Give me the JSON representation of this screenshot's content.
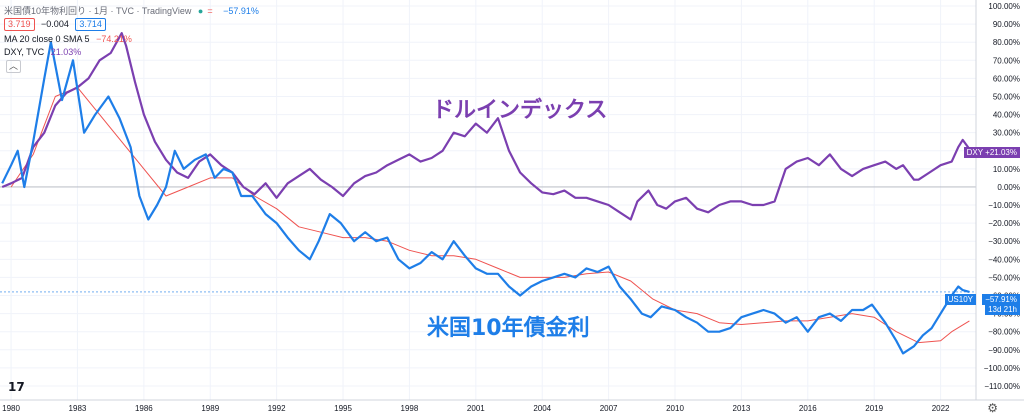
{
  "header": {
    "title": "米国債10年物利回り · 1月 · TVC · TradingView",
    "dot_colors": [
      "#26a69a",
      "#ef5350"
    ],
    "change_pct": "−57.91%",
    "bid": "3.719",
    "change": "−0.004",
    "ask": "3.714",
    "ma_label": "MA 20 close 0 SMA 5",
    "ma_value": "−74.21%",
    "dxy_label": "DXY, TVC",
    "dxy_value": "21.03%",
    "collapse_icon": "chevron-up-icon"
  },
  "annotations": {
    "dxy": "ドルインデックス",
    "us10y": "米国10年債金利"
  },
  "right_tags": {
    "dxy": "DXY  +21.03%",
    "us10y_name": "US10Y",
    "us10y_value": "−57.91%",
    "countdown": "13d 21h"
  },
  "colors": {
    "dxy": "#7b3fb0",
    "us10y": "#1e7ee8",
    "ma": "#ef5350",
    "grid": "#f0f3fa",
    "axis_text": "#131722"
  },
  "chart_data": {
    "type": "line",
    "x_ticks": [
      "1980",
      "1983",
      "1986",
      "1989",
      "1992",
      "1995",
      "1998",
      "2001",
      "2004",
      "2007",
      "2010",
      "2013",
      "2016",
      "2019",
      "2022"
    ],
    "y_ticks": [
      "100.00%",
      "90.00%",
      "80.00%",
      "70.00%",
      "60.00%",
      "50.00%",
      "40.00%",
      "30.00%",
      "20.00%",
      "10.00%",
      "0.00%",
      "−10.00%",
      "−20.00%",
      "−30.00%",
      "−40.00%",
      "−50.00%",
      "−60.00%",
      "−70.00%",
      "−80.00%",
      "−90.00%",
      "−100.00%",
      "−110.00%"
    ],
    "ylim": [
      -110,
      100
    ],
    "xlim": [
      1979.5,
      2023.6
    ],
    "series": [
      {
        "name": "DXY",
        "color": "#7b3fb0",
        "x": [
          1979.6,
          1980.0,
          1980.5,
          1981.0,
          1981.5,
          1982.0,
          1982.5,
          1983.0,
          1983.5,
          1984.0,
          1984.5,
          1985.0,
          1985.2,
          1985.6,
          1986.0,
          1986.5,
          1987.0,
          1987.5,
          1988.0,
          1988.5,
          1989.0,
          1989.5,
          1990.0,
          1990.5,
          1991.0,
          1991.5,
          1992.0,
          1992.5,
          1993.0,
          1993.5,
          1994.0,
          1994.5,
          1995.0,
          1995.5,
          1996.0,
          1996.5,
          1997.0,
          1997.5,
          1998.0,
          1998.5,
          1999.0,
          1999.5,
          2000.0,
          2000.5,
          2001.0,
          2001.5,
          2002.0,
          2002.5,
          2003.0,
          2003.5,
          2004.0,
          2004.5,
          2005.0,
          2005.5,
          2006.0,
          2006.5,
          2007.0,
          2007.5,
          2008.0,
          2008.3,
          2008.8,
          2009.2,
          2009.6,
          2010.0,
          2010.5,
          2011.0,
          2011.5,
          2012.0,
          2012.5,
          2013.0,
          2013.5,
          2014.0,
          2014.5,
          2015.0,
          2015.5,
          2016.0,
          2016.5,
          2017.0,
          2017.5,
          2018.0,
          2018.5,
          2019.0,
          2019.5,
          2020.0,
          2020.3,
          2020.8,
          2021.0,
          2021.5,
          2022.0,
          2022.5,
          2022.8,
          2023.0,
          2023.3
        ],
        "y": [
          0,
          2,
          5,
          22,
          30,
          45,
          52,
          55,
          60,
          70,
          74,
          85,
          78,
          58,
          40,
          25,
          15,
          8,
          5,
          14,
          18,
          12,
          8,
          0,
          -4,
          2,
          -6,
          2,
          6,
          10,
          4,
          0,
          -5,
          2,
          6,
          8,
          12,
          15,
          18,
          14,
          16,
          20,
          30,
          28,
          35,
          30,
          38,
          20,
          8,
          2,
          -3,
          -4,
          -2,
          -6,
          -6,
          -8,
          -10,
          -14,
          -18,
          -8,
          -2,
          -10,
          -12,
          -8,
          -6,
          -12,
          -14,
          -10,
          -8,
          -8,
          -10,
          -10,
          -8,
          10,
          14,
          16,
          12,
          18,
          10,
          6,
          10,
          12,
          14,
          10,
          12,
          4,
          4,
          8,
          12,
          14,
          22,
          26,
          21
        ]
      },
      {
        "name": "US10Y",
        "color": "#1e7ee8",
        "x": [
          1979.6,
          1980.0,
          1980.3,
          1980.6,
          1981.0,
          1981.5,
          1981.8,
          1982.3,
          1982.8,
          1983.3,
          1983.8,
          1984.4,
          1984.9,
          1985.4,
          1985.8,
          1986.2,
          1986.6,
          1987.0,
          1987.4,
          1987.8,
          1988.3,
          1988.8,
          1989.2,
          1989.6,
          1990.0,
          1990.4,
          1990.9,
          1991.5,
          1992.0,
          1992.5,
          1993.0,
          1993.5,
          1993.9,
          1994.4,
          1994.9,
          1995.5,
          1996.0,
          1996.5,
          1997.0,
          1997.5,
          1998.0,
          1998.5,
          1999.0,
          1999.5,
          2000.0,
          2000.5,
          2001.0,
          2001.5,
          2002.0,
          2002.5,
          2003.0,
          2003.5,
          2004.0,
          2004.5,
          2005.0,
          2005.5,
          2006.0,
          2006.5,
          2007.0,
          2007.5,
          2008.0,
          2008.5,
          2008.9,
          2009.4,
          2010.0,
          2010.5,
          2011.0,
          2011.5,
          2012.0,
          2012.5,
          2013.0,
          2013.5,
          2014.0,
          2014.5,
          2015.0,
          2015.5,
          2016.0,
          2016.5,
          2017.0,
          2017.5,
          2018.0,
          2018.5,
          2018.9,
          2019.5,
          2020.0,
          2020.3,
          2020.8,
          2021.2,
          2021.6,
          2022.0,
          2022.5,
          2022.8,
          2023.0,
          2023.3
        ],
        "y": [
          2,
          12,
          20,
          0,
          25,
          60,
          80,
          48,
          70,
          30,
          40,
          50,
          38,
          22,
          -5,
          -18,
          -10,
          0,
          20,
          10,
          15,
          18,
          5,
          10,
          8,
          -5,
          -5,
          -15,
          -20,
          -28,
          -35,
          -40,
          -30,
          -15,
          -20,
          -30,
          -25,
          -30,
          -28,
          -40,
          -45,
          -42,
          -36,
          -40,
          -30,
          -38,
          -45,
          -48,
          -48,
          -55,
          -60,
          -55,
          -52,
          -50,
          -48,
          -50,
          -45,
          -47,
          -44,
          -55,
          -62,
          -70,
          -72,
          -66,
          -68,
          -72,
          -75,
          -80,
          -80,
          -78,
          -72,
          -70,
          -68,
          -70,
          -75,
          -72,
          -80,
          -72,
          -70,
          -74,
          -68,
          -68,
          -65,
          -75,
          -85,
          -92,
          -88,
          -82,
          -78,
          -70,
          -60,
          -55,
          -57,
          -58
        ]
      },
      {
        "name": "MA 20 close 0 SMA 5",
        "color": "#ef5350",
        "x": [
          1980.0,
          1981.0,
          1982.0,
          1983.0,
          1984.0,
          1985.0,
          1986.0,
          1987.0,
          1988.0,
          1989.0,
          1990.0,
          1991.0,
          1992.0,
          1993.0,
          1994.0,
          1995.0,
          1996.0,
          1997.0,
          1998.0,
          1999.0,
          2000.0,
          2001.0,
          2002.0,
          2003.0,
          2004.0,
          2005.0,
          2006.0,
          2007.0,
          2008.0,
          2009.0,
          2010.0,
          2011.0,
          2012.0,
          2013.0,
          2014.0,
          2015.0,
          2016.0,
          2017.0,
          2018.0,
          2019.0,
          2020.0,
          2021.0,
          2022.0,
          2022.5,
          2023.3
        ],
        "y": [
          0,
          18,
          50,
          55,
          40,
          25,
          10,
          -5,
          0,
          5,
          5,
          -5,
          -12,
          -22,
          -25,
          -28,
          -28,
          -30,
          -35,
          -38,
          -38,
          -40,
          -45,
          -50,
          -50,
          -50,
          -48,
          -47,
          -52,
          -62,
          -68,
          -70,
          -75,
          -76,
          -75,
          -74,
          -74,
          -72,
          -70,
          -72,
          -80,
          -86,
          -85,
          -80,
          -74
        ]
      }
    ]
  }
}
